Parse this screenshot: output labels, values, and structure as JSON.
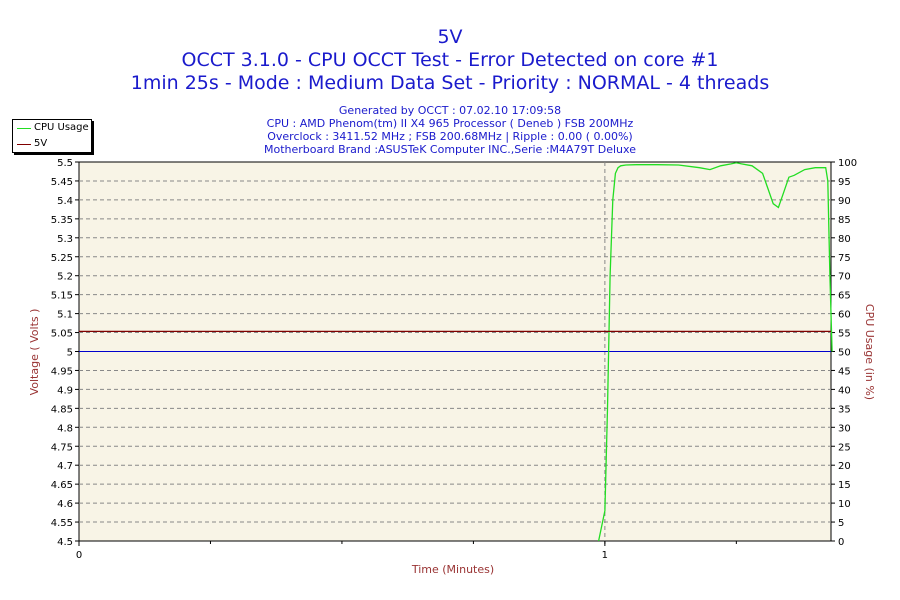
{
  "chart_data": {
    "type": "line",
    "title": "5V",
    "subtitle_lines": [
      "OCCT 3.1.0 - CPU OCCT Test - Error Detected on core #1",
      "1min 25s - Mode : Medium Data Set - Priority : NORMAL - 4 threads"
    ],
    "info_lines": [
      "Generated by OCCT : 07.02.10 17:09:58",
      "CPU : AMD Phenom(tm) II X4 965 Processor ( Deneb ) FSB 200MHz",
      "Overclock : 3411.52 MHz ; FSB 200.68MHz | Ripple : 0.00 ( 0.00%)",
      "Motherboard Brand :ASUSTeK Computer INC.,Serie :M4A79T Deluxe"
    ],
    "xlabel": "Time (Minutes)",
    "ylabel": "Voltage ( Volts )",
    "y2label": "CPU Usage (in %)",
    "xlim": [
      0,
      1.43
    ],
    "ylim": [
      4.5,
      5.5
    ],
    "y2lim": [
      0,
      100
    ],
    "x_ticks": [
      "0",
      "1"
    ],
    "y_ticks": [
      "5.5",
      "5.45",
      "5.4",
      "5.35",
      "5.3",
      "5.25",
      "5.2",
      "5.15",
      "5.1",
      "5.05",
      "5",
      "4.95",
      "4.9",
      "4.85",
      "4.8",
      "4.75",
      "4.7",
      "4.65",
      "4.6",
      "4.55",
      "4.5"
    ],
    "y2_ticks": [
      "100",
      "95",
      "90",
      "85",
      "80",
      "75",
      "70",
      "65",
      "60",
      "55",
      "50",
      "45",
      "40",
      "35",
      "30",
      "25",
      "20",
      "15",
      "10",
      "5",
      "0"
    ],
    "grid": true,
    "legend_position": "top-left",
    "series": [
      {
        "name": "CPU Usage",
        "axis": "right",
        "color": "#22dd22",
        "x": [
          0.988,
          1.0,
          1.005,
          1.01,
          1.015,
          1.02,
          1.025,
          1.03,
          1.04,
          1.06,
          1.1,
          1.14,
          1.18,
          1.2,
          1.22,
          1.24,
          1.25,
          1.26,
          1.28,
          1.3,
          1.31,
          1.32,
          1.33,
          1.34,
          1.35,
          1.36,
          1.38,
          1.4,
          1.42,
          1.424,
          1.428,
          1.432
        ],
        "values": [
          0,
          8,
          35,
          70,
          90,
          97,
          98.5,
          99,
          99.2,
          99.3,
          99.3,
          99.2,
          98.5,
          98,
          99,
          99.5,
          99.8,
          99.5,
          99,
          97,
          93,
          89,
          88,
          92,
          96,
          96.5,
          98,
          98.5,
          98.5,
          95,
          70,
          50
        ]
      },
      {
        "name": "5V",
        "axis": "left",
        "color": "#800000",
        "x": [
          0,
          1.43
        ],
        "values": [
          5.053,
          5.053
        ]
      }
    ],
    "reference_line": {
      "axis": "left",
      "value": 5.0,
      "color": "#0000cc"
    },
    "marker_x": 1.0
  }
}
